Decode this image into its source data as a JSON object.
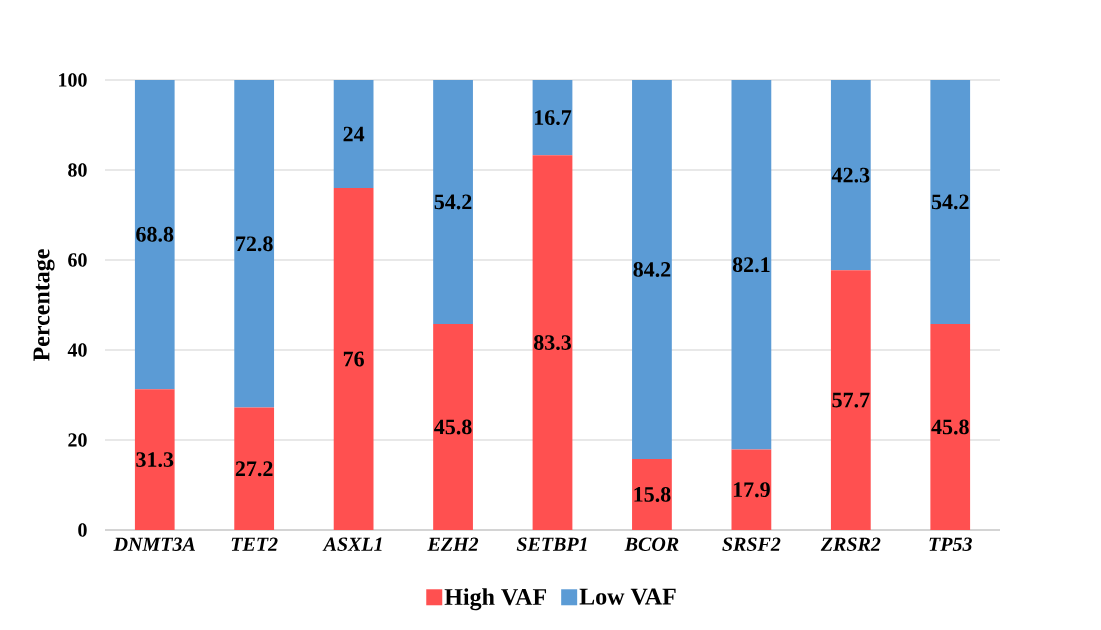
{
  "chart_data": {
    "type": "bar",
    "stacked": true,
    "ylabel": "Percentage",
    "categories": [
      "DNMT3A",
      "TET2",
      "ASXL1",
      "EZH2",
      "SETBP1",
      "BCOR",
      "SRSF2",
      "ZRSR2",
      "TP53"
    ],
    "series": [
      {
        "name": "High VAF",
        "color": "#ff5050",
        "values": [
          31.3,
          27.2,
          76,
          45.8,
          83.3,
          15.8,
          17.9,
          57.7,
          45.8
        ]
      },
      {
        "name": "Low VAF",
        "color": "#5b9bd5",
        "values": [
          68.8,
          72.8,
          24,
          54.2,
          16.7,
          84.2,
          82.1,
          42.3,
          54.2
        ]
      }
    ],
    "ylim": [
      0,
      100
    ],
    "yticks": [
      0,
      20,
      40,
      60,
      80,
      100
    ],
    "grid": "y",
    "legend": "bottom",
    "data_labels": true
  }
}
